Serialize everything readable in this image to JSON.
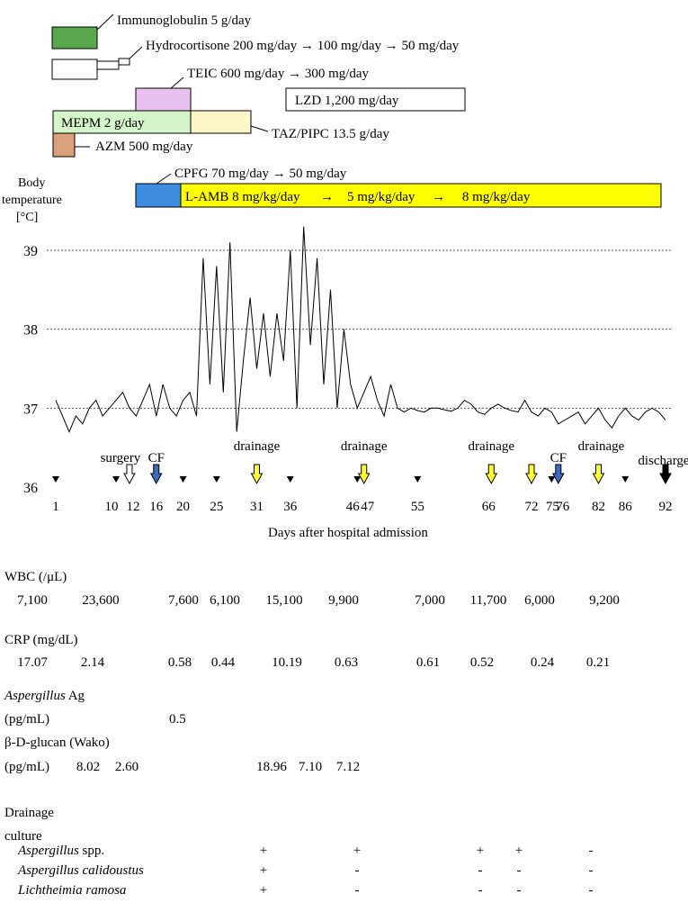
{
  "drugs": [
    {
      "label": "Immunoglobulin 5 g/day",
      "color": "#5aa84e"
    },
    {
      "label": "Hydrocortisone 200 mg/day → 100 mg/day → 50 mg/day",
      "color": "#ffffff"
    },
    {
      "label": "TEIC 600 mg/day → 300 mg/day",
      "color": "#e7c2ef"
    },
    {
      "label": "LZD 1,200 mg/day",
      "color": "#ffffff"
    },
    {
      "label": "MEPM 2 g/day",
      "color": "#d4f4c9"
    },
    {
      "label": "TAZ/PIPC 13.5 g/day",
      "color": "#fdf6c8"
    },
    {
      "label": "AZM 500 mg/day",
      "color": "#d9a07a"
    },
    {
      "label": "CPFG 70 mg/day → 50 mg/day",
      "color": "#3e8de0"
    },
    {
      "label": "L-AMB 8 mg/kg/day      →    5 mg/kg/day     →     8 mg/kg/day",
      "color": "#ffff00"
    }
  ],
  "chart_data": {
    "type": "line",
    "ylabel": "Body temperature [°C]",
    "xlabel": "Days after hospital admission",
    "ylim": [
      36,
      39.4
    ],
    "yticks": [
      36,
      37,
      38,
      39
    ],
    "xticks": [
      {
        "v": 1,
        "label": "1"
      },
      {
        "v": 10,
        "label": "10"
      },
      {
        "v": 12,
        "label": "12"
      },
      {
        "v": 16,
        "label": "16"
      },
      {
        "v": 20,
        "label": "20"
      },
      {
        "v": 25,
        "label": "25"
      },
      {
        "v": 31,
        "label": "31"
      },
      {
        "v": 36,
        "label": "36"
      },
      {
        "v": 46,
        "label": "46"
      },
      {
        "v": 47,
        "label": "47"
      },
      {
        "v": 55,
        "label": "55"
      },
      {
        "v": 66,
        "label": "66"
      },
      {
        "v": 72,
        "label": "72"
      },
      {
        "v": 75,
        "label": "75"
      },
      {
        "v": 76,
        "label": "76"
      },
      {
        "v": 82,
        "label": "82"
      },
      {
        "v": 86,
        "label": "86"
      },
      {
        "v": 92,
        "label": "92"
      }
    ],
    "grid": "dotted horizontal at 37, 38, 39",
    "series": [
      {
        "x": [
          1,
          2,
          3,
          4,
          5,
          6,
          7,
          8,
          9,
          10,
          11,
          12,
          13,
          14,
          15,
          16,
          17,
          18,
          19,
          20,
          21,
          22,
          23,
          24,
          25,
          26,
          27,
          28,
          29,
          30,
          31,
          32,
          33,
          34,
          35,
          36,
          37,
          38,
          39,
          40,
          41,
          42,
          43,
          44,
          45,
          46,
          47,
          48,
          49,
          50,
          51,
          52,
          53,
          54,
          55,
          56,
          57,
          58,
          59,
          60,
          61,
          62,
          63,
          64,
          65,
          66,
          67,
          68,
          69,
          70,
          71,
          72,
          73,
          74,
          75,
          76,
          77,
          78,
          79,
          80,
          81,
          82,
          83,
          84,
          85,
          86,
          87,
          88,
          89,
          90,
          91,
          92
        ],
        "y": [
          37.1,
          36.9,
          36.7,
          36.9,
          36.8,
          37.0,
          37.1,
          36.9,
          37.0,
          37.1,
          37.2,
          37.0,
          36.9,
          37.1,
          37.3,
          36.9,
          37.3,
          37.0,
          36.9,
          37.1,
          37.2,
          36.9,
          38.9,
          37.3,
          38.8,
          37.2,
          39.1,
          36.7,
          37.6,
          38.4,
          37.5,
          38.2,
          37.4,
          38.2,
          37.6,
          39.0,
          37.0,
          39.3,
          37.8,
          38.9,
          37.3,
          38.5,
          37.0,
          38.0,
          37.3,
          37.0,
          37.2,
          37.4,
          37.1,
          36.9,
          37.3,
          37.0,
          36.95,
          37.0,
          36.97,
          36.95,
          37.0,
          37.0,
          36.98,
          36.96,
          37.0,
          37.1,
          37.05,
          36.95,
          36.92,
          37.0,
          37.05,
          37.0,
          36.97,
          36.95,
          37.1,
          36.95,
          36.9,
          37.0,
          36.95,
          36.8,
          36.85,
          36.9,
          36.95,
          36.8,
          36.9,
          37.0,
          36.85,
          36.75,
          36.9,
          37.0,
          36.9,
          36.85,
          36.95,
          37.0,
          36.95,
          36.85
        ]
      }
    ]
  },
  "events": [
    {
      "day": 12,
      "label": "surgery",
      "arrow": "white"
    },
    {
      "day": 16,
      "label": "CF",
      "arrow": "blue"
    },
    {
      "day": 31,
      "label": "drainage",
      "arrow": "yellow"
    },
    {
      "day": 47,
      "label": "drainage",
      "arrow": "yellow"
    },
    {
      "day": 66,
      "label": "drainage",
      "arrow": "yellow"
    },
    {
      "day": 72,
      "label": "",
      "arrow": "yellow"
    },
    {
      "day": 76,
      "label": "CF",
      "arrow": "blue"
    },
    {
      "day": 82,
      "label": "drainage",
      "arrow": "yellow"
    },
    {
      "day": 92,
      "label": "discharge",
      "arrow": "black"
    }
  ],
  "marker_days": [
    1,
    10,
    20,
    25,
    36,
    46,
    55,
    75,
    86
  ],
  "colors": {
    "white": "#ffffff",
    "blue": "#3b6cc0",
    "yellow": "#ffff33",
    "black": "#000000"
  },
  "labs": {
    "wbc_title": "WBC (/μL)",
    "wbc_values": [
      "7,100",
      "23,600",
      "7,600",
      "6,100",
      "15,100",
      "9,900",
      "7,000",
      "11,700",
      "6,000",
      "9,200"
    ],
    "crp_title": "CRP (mg/dL)",
    "crp_values": [
      "17.07",
      "2.14",
      "0.58",
      "0.44",
      "10.19",
      "0.63",
      "0.61",
      "0.52",
      "0.24",
      "0.21"
    ],
    "asp_title_italic": "Aspergillus",
    "asp_title_rest": " Ag",
    "asp_unit": "(pg/mL)",
    "asp_value": "0.5",
    "bdg_title": "β-D-glucan (Wako)",
    "bdg_unit": "(pg/mL)",
    "bdg_values": [
      "8.02",
      "2.60",
      "18.96",
      "7.10",
      "7.12"
    ],
    "drain_title1": "Drainage",
    "drain_title2": "culture",
    "cultures": [
      {
        "name": "Aspergillus",
        "suffix": " spp.",
        "values": [
          "+",
          "+",
          "+",
          "+",
          "-"
        ]
      },
      {
        "name": "Aspergillus calidoustus",
        "suffix": "",
        "values": [
          "+",
          "-",
          "-",
          "-",
          "-"
        ]
      },
      {
        "name": "Lichtheimia ramosa",
        "suffix": "",
        "values": [
          "+",
          "-",
          "-",
          "-",
          "-"
        ]
      }
    ]
  }
}
